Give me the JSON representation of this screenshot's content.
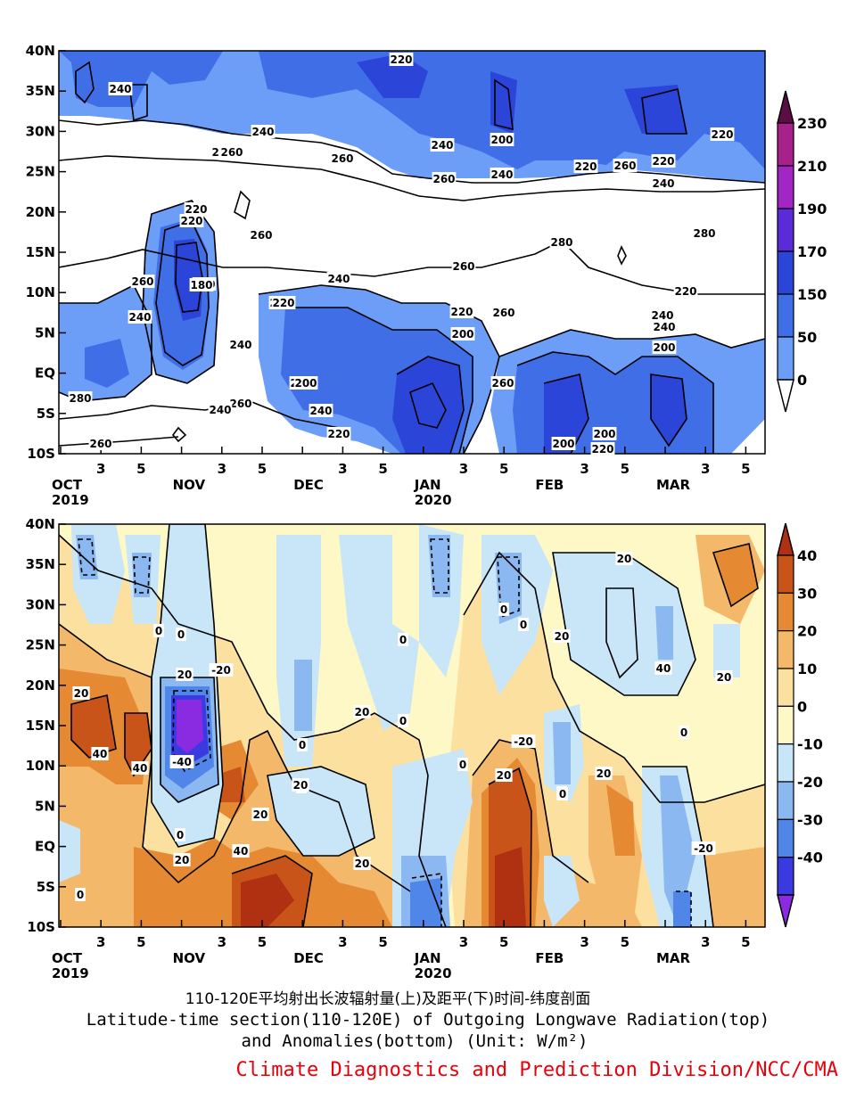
{
  "colors": {
    "olr_levels": [
      "#ffffff",
      "#6c9ef8",
      "#3f6ee6",
      "#2b45d8",
      "#5a2bd8",
      "#a325c4",
      "#a8218a",
      "#5c0e42"
    ],
    "anom_levels": [
      "#8a2be2",
      "#3a3ae0",
      "#4f86e8",
      "#8bb8f0",
      "#c8e6f8",
      "#fdf8c6",
      "#fce0a0",
      "#f4b86a",
      "#e58a32",
      "#c8541a",
      "#b03012"
    ],
    "credit": "#e8000b"
  },
  "axes": {
    "y_ticks": [
      "40N",
      "35N",
      "30N",
      "25N",
      "20N",
      "15N",
      "10N",
      "5N",
      "EQ",
      "5S",
      "10S"
    ],
    "x_ticks": [
      {
        "label": "OCT",
        "sub": "2019"
      },
      {
        "label": "3",
        "sub": ""
      },
      {
        "label": "5",
        "sub": ""
      },
      {
        "label": "NOV",
        "sub": ""
      },
      {
        "label": "3",
        "sub": ""
      },
      {
        "label": "5",
        "sub": ""
      },
      {
        "label": "DEC",
        "sub": ""
      },
      {
        "label": "3",
        "sub": ""
      },
      {
        "label": "5",
        "sub": ""
      },
      {
        "label": "JAN",
        "sub": "2020"
      },
      {
        "label": "3",
        "sub": ""
      },
      {
        "label": "5",
        "sub": ""
      },
      {
        "label": "FEB",
        "sub": ""
      },
      {
        "label": "3",
        "sub": ""
      },
      {
        "label": "5",
        "sub": ""
      },
      {
        "label": "MAR",
        "sub": ""
      },
      {
        "label": "3",
        "sub": ""
      },
      {
        "label": "5",
        "sub": ""
      }
    ]
  },
  "chart_data": [
    {
      "type": "heatmap",
      "panel": "top",
      "variable": "Outgoing Longwave Radiation",
      "lat_range": [
        -10,
        40
      ],
      "colorbar_labels": [
        "230",
        "210",
        "190",
        "170",
        "150",
        "50",
        "0"
      ],
      "contour_labels": [
        "240",
        "220",
        "220",
        "240",
        "260",
        "260",
        "220",
        "200",
        "260",
        "180",
        "260",
        "240",
        "240",
        "260",
        "220",
        "240",
        "260",
        "200",
        "220",
        "260",
        "240",
        "240",
        "220",
        "200",
        "200",
        "240",
        "260",
        "280",
        "260",
        "220",
        "200",
        "240",
        "220",
        "200",
        "200",
        "220",
        "220",
        "260",
        "240",
        "280",
        "260",
        "220",
        "240",
        "200",
        "240",
        "260",
        "280",
        "220"
      ],
      "note_x_axis": "pentads, Oct 2019 – Mar 2020"
    },
    {
      "type": "heatmap",
      "panel": "bottom",
      "variable": "OLR Anomalies",
      "lat_range": [
        -10,
        40
      ],
      "colorbar_labels": [
        "40",
        "30",
        "20",
        "10",
        "0",
        "-10",
        "-20",
        "-30",
        "-40"
      ],
      "contour_labels": [
        "20",
        "40",
        "40",
        "0",
        "0",
        "-20",
        "20",
        "-40",
        "0",
        "20",
        "20",
        "40",
        "0",
        "20",
        "0",
        "0",
        "20",
        "0",
        "-20",
        "0",
        "20",
        "20",
        "0",
        "0",
        "20",
        "0",
        "-20",
        "40",
        "0",
        "20",
        "20",
        "0",
        "20",
        "0"
      ]
    }
  ],
  "caption": {
    "chinese": "110-120E平均射出长波辐射量(上)及距平(下)时间-纬度剖面",
    "english_line1": "Latitude-time section(110-120E) of Outgoing Longwave Radiation(top)",
    "english_line2": "and Anomalies(bottom) (Unit: W/m²)",
    "credit": "Climate Diagnostics and Prediction Division/NCC/CMA"
  }
}
